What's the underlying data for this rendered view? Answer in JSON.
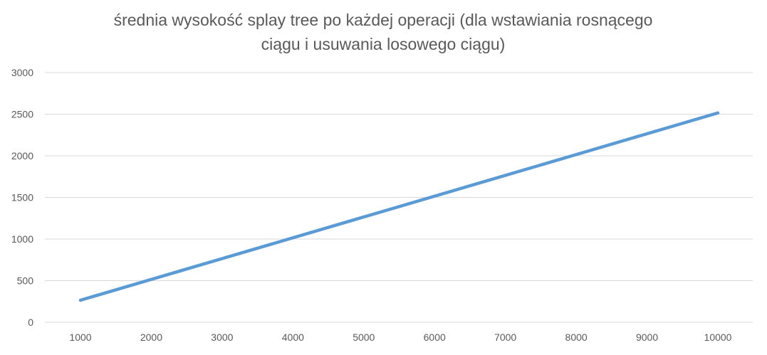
{
  "chart_data": {
    "type": "line",
    "title_lines": [
      "średnia wysokość splay tree po każdej operacji (dla wstawiania rosnącego",
      "ciągu i usuwania losowego ciągu)"
    ],
    "x": [
      1000,
      2000,
      3000,
      4000,
      5000,
      6000,
      7000,
      8000,
      9000,
      10000
    ],
    "x_tick_labels": [
      "1000",
      "2000",
      "3000",
      "4000",
      "5000",
      "6000",
      "7000",
      "8000",
      "9000",
      "10000"
    ],
    "y_tick_values": [
      0,
      500,
      1000,
      1500,
      2000,
      2500,
      3000
    ],
    "y_tick_labels": [
      "0",
      "500",
      "1000",
      "1500",
      "2000",
      "2500",
      "3000"
    ],
    "ylim": [
      0,
      3000
    ],
    "grid": "horizontal",
    "legend": "none",
    "series": [
      {
        "values": [
          265,
          515,
          765,
          1015,
          1265,
          1515,
          1765,
          2015,
          2265,
          2515
        ],
        "color": "#5b9bd5"
      }
    ],
    "colors": {
      "gridline": "#d9d9d9",
      "text": "#595959",
      "line": "#5b9bd5"
    }
  }
}
